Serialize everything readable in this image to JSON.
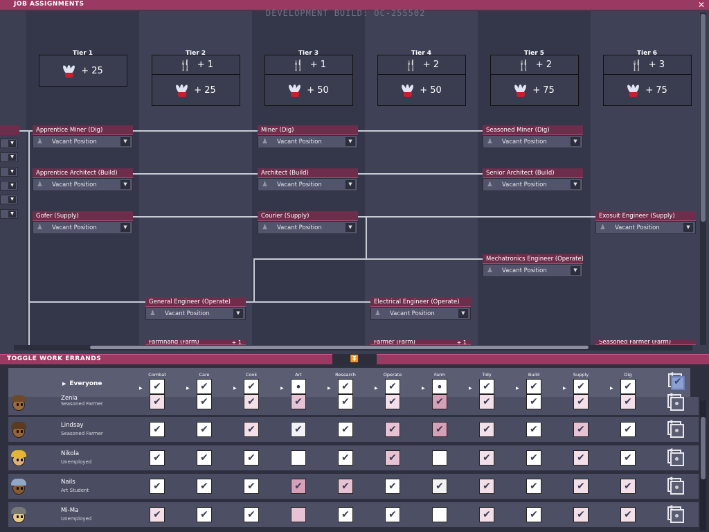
{
  "header": {
    "title": "JOB ASSIGNMENTS",
    "close": "✕",
    "dev_build": "DEVELOPMENT BUILD: OC-255502"
  },
  "tiers": [
    {
      "label": "Tier 1",
      "rewards": [
        {
          "icon": "plant-icon",
          "value": "+ 25"
        }
      ]
    },
    {
      "label": "Tier 2",
      "rewards": [
        {
          "icon": "food-icon",
          "value": "+ 1"
        },
        {
          "icon": "plant-icon",
          "value": "+ 25"
        }
      ]
    },
    {
      "label": "Tier 3",
      "rewards": [
        {
          "icon": "food-icon",
          "value": "+ 1"
        },
        {
          "icon": "plant-icon",
          "value": "+ 50"
        }
      ]
    },
    {
      "label": "Tier 4",
      "rewards": [
        {
          "icon": "food-icon",
          "value": "+ 2"
        },
        {
          "icon": "plant-icon",
          "value": "+ 50"
        }
      ]
    },
    {
      "label": "Tier 5",
      "rewards": [
        {
          "icon": "food-icon",
          "value": "+ 2"
        },
        {
          "icon": "plant-icon",
          "value": "+ 75"
        }
      ]
    },
    {
      "label": "Tier 6",
      "rewards": [
        {
          "icon": "food-icon",
          "value": "+ 3"
        },
        {
          "icon": "plant-icon",
          "value": "+ 75"
        }
      ]
    }
  ],
  "jobs": {
    "apprentice_miner": {
      "title": "Apprentice Miner (Dig)",
      "status": "Vacant Position"
    },
    "apprentice_architect": {
      "title": "Apprentice Architect (Build)",
      "status": "Vacant Position"
    },
    "gofer": {
      "title": "Gofer (Supply)",
      "status": "Vacant Position"
    },
    "general_engineer": {
      "title": "General Engineer (Operate)",
      "status": "Vacant Position"
    },
    "farmhand": {
      "title": "Farmhand (Farm)",
      "plus": "+ 1"
    },
    "miner": {
      "title": "Miner (Dig)",
      "status": "Vacant Position"
    },
    "architect": {
      "title": "Architect (Build)",
      "status": "Vacant Position"
    },
    "courier": {
      "title": "Courier (Supply)",
      "status": "Vacant Position"
    },
    "electrical_engineer": {
      "title": "Electrical Engineer (Operate)",
      "status": "Vacant Position"
    },
    "farmer": {
      "title": "Farmer (Farm)",
      "plus": "+ 1"
    },
    "seasoned_miner": {
      "title": "Seasoned Miner (Dig)",
      "status": "Vacant Position"
    },
    "senior_architect": {
      "title": "Senior Architect (Build)",
      "status": "Vacant Position"
    },
    "mechatronics_engineer": {
      "title": "Mechatronics Engineer (Operate)",
      "status": "Vacant Position"
    },
    "exosuit_engineer": {
      "title": "Exosuit Engineer (Supply)",
      "status": "Vacant Position"
    },
    "seasoned_farmer": {
      "title": "Seasoned Farmer (Farm)"
    }
  },
  "errands_panel": {
    "title": "TOGGLE WORK ERRANDS",
    "collapse": "⏬",
    "everyone": "Everyone",
    "columns": [
      "Combat",
      "Care",
      "Cook",
      "Art",
      "Research",
      "Operate",
      "Farm",
      "Tidy",
      "Build",
      "Supply",
      "Dig"
    ],
    "header_states": [
      "check",
      "check",
      "check",
      "dot",
      "check",
      "check",
      "dot",
      "check",
      "check",
      "check",
      "check"
    ],
    "dupes": [
      {
        "name": "Zenia",
        "role": "Seasoned Farmer",
        "cells": [
          "p1",
          "w",
          "p1",
          "p2",
          "w",
          "p1",
          "p3",
          "p1",
          "w",
          "p1",
          "p1"
        ]
      },
      {
        "name": "Lindsay",
        "role": "Seasoned Farmer",
        "cells": [
          "w",
          "w",
          "p1",
          "ph",
          "w",
          "p2",
          "p3",
          "p1",
          "w",
          "p2",
          "w"
        ]
      },
      {
        "name": "Nikola",
        "role": "Unemployed",
        "cells": [
          "w",
          "w",
          "w",
          "we",
          "w",
          "p2",
          "we",
          "p1",
          "w",
          "p1",
          "w"
        ]
      },
      {
        "name": "Nails",
        "role": "Art Student",
        "cells": [
          "w",
          "w",
          "w",
          "p3",
          "p2",
          "w",
          "ph",
          "p1",
          "w",
          "p1",
          "p1"
        ]
      },
      {
        "name": "Mi-Ma",
        "role": "Unemployed",
        "cells": [
          "p1",
          "w",
          "w",
          "p2e",
          "w",
          "w",
          "we",
          "p1",
          "w",
          "p1",
          "p1"
        ]
      }
    ]
  }
}
